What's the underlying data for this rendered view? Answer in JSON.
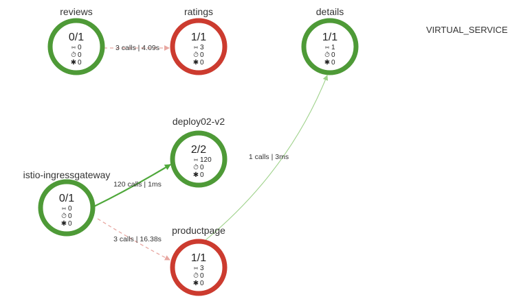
{
  "colors": {
    "healthy": "#4e9a37",
    "error": "#cc3b2f",
    "edge_success": "#4fa83b",
    "edge_error": "#e8a7a1",
    "edge_light": "#9fd28b"
  },
  "legend": {
    "virtual_service_label": "VIRTUAL_SERVICE"
  },
  "nodes": [
    {
      "id": "reviews",
      "title": "reviews",
      "ratio": "0/1",
      "status": "healthy",
      "stats": {
        "instances": "0",
        "latency": "0",
        "errors": "0"
      }
    },
    {
      "id": "ratings",
      "title": "ratings",
      "ratio": "1/1",
      "status": "error",
      "stats": {
        "instances": "3",
        "latency": "0",
        "errors": "0"
      }
    },
    {
      "id": "details",
      "title": "details",
      "ratio": "1/1",
      "status": "healthy",
      "stats": {
        "instances": "1",
        "latency": "0",
        "errors": "0"
      }
    },
    {
      "id": "deploy02-v2",
      "title": "deploy02-v2",
      "ratio": "2/2",
      "status": "healthy",
      "stats": {
        "instances": "120",
        "latency": "0",
        "errors": "0"
      }
    },
    {
      "id": "istio-ingressgateway",
      "title": "istio-ingressgateway",
      "ratio": "0/1",
      "status": "healthy",
      "stats": {
        "instances": "0",
        "latency": "0",
        "errors": "0"
      }
    },
    {
      "id": "productpage",
      "title": "productpage",
      "ratio": "1/1",
      "status": "error",
      "stats": {
        "instances": "3",
        "latency": "0",
        "errors": "0"
      }
    }
  ],
  "edges": [
    {
      "id": "reviews-ratings",
      "label": "3 calls | 4.09s",
      "style": "dashed-error"
    },
    {
      "id": "gateway-deploy",
      "label": "120 calls | 1ms",
      "style": "solid-success"
    },
    {
      "id": "gateway-productpage",
      "label": "3 calls | 16.38s",
      "style": "dashed-error"
    },
    {
      "id": "productpage-details",
      "label": "1 calls | 3ms",
      "style": "solid-light"
    }
  ],
  "icons": {
    "instances": "branch-icon",
    "latency": "stopwatch-icon",
    "errors": "bug-icon"
  }
}
